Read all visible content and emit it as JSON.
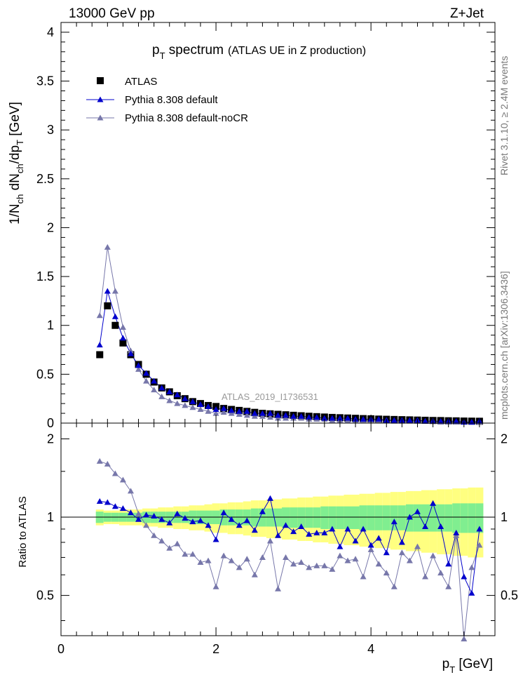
{
  "header": {
    "left": "13000 GeV pp",
    "right": "Z+Jet"
  },
  "side": {
    "rivet": "Rivet 3.1.10, ≥ 2.4M events",
    "mcplots": "mcplots.cern.ch [arXiv:1306.3436]"
  },
  "chart_data": [
    {
      "type": "scatter",
      "title_main": "p",
      "title_sub": "T",
      "title_rest": " spectrum",
      "title_note": "(ATLAS UE in Z production)",
      "ylabel": "1/N_ch dN_ch/dp_T [GeV]",
      "ylabel_parts": {
        "a": "1/N",
        "b": "ch",
        "c": " dN",
        "d": "ch",
        "e": "/dp",
        "f": "T",
        "g": " [GeV]"
      },
      "watermark": "ATLAS_2019_I1736531",
      "ylim": [
        0,
        4.1
      ],
      "xlim": [
        0,
        5.6
      ],
      "yticks": [
        "0",
        "0.5",
        "1",
        "1.5",
        "2",
        "2.5",
        "3",
        "3.5",
        "4"
      ],
      "legend_position": "top-left",
      "x": [
        0.5,
        0.6,
        0.7,
        0.8,
        0.9,
        1.0,
        1.1,
        1.2,
        1.3,
        1.4,
        1.5,
        1.6,
        1.7,
        1.8,
        1.9,
        2.0,
        2.1,
        2.2,
        2.3,
        2.4,
        2.5,
        2.6,
        2.7,
        2.8,
        2.9,
        3.0,
        3.1,
        3.2,
        3.3,
        3.4,
        3.5,
        3.6,
        3.7,
        3.8,
        3.9,
        4.0,
        4.1,
        4.2,
        4.3,
        4.4,
        4.5,
        4.6,
        4.7,
        4.8,
        4.9,
        5.0,
        5.1,
        5.2,
        5.3,
        5.4
      ],
      "series": [
        {
          "name": "ATLAS",
          "color": "#000000",
          "marker": "square",
          "values": [
            0.7,
            1.2,
            1.0,
            0.82,
            0.7,
            0.6,
            0.5,
            0.42,
            0.36,
            0.32,
            0.28,
            0.25,
            0.22,
            0.2,
            0.18,
            0.17,
            0.15,
            0.14,
            0.13,
            0.12,
            0.11,
            0.1,
            0.095,
            0.09,
            0.085,
            0.08,
            0.075,
            0.07,
            0.066,
            0.062,
            0.058,
            0.055,
            0.052,
            0.049,
            0.046,
            0.044,
            0.041,
            0.039,
            0.037,
            0.035,
            0.033,
            0.031,
            0.029,
            0.027,
            0.026,
            0.024,
            0.023,
            0.021,
            0.02,
            0.019
          ]
        },
        {
          "name": "Pythia 8.308 default",
          "color": "#0000cc",
          "marker": "triangle",
          "values": [
            0.8,
            1.35,
            1.09,
            0.87,
            0.71,
            0.59,
            0.51,
            0.43,
            0.36,
            0.32,
            0.29,
            0.25,
            0.22,
            0.19,
            0.17,
            0.14,
            0.15,
            0.13,
            0.12,
            0.12,
            0.1,
            0.1,
            0.1,
            0.08,
            0.08,
            0.07,
            0.07,
            0.06,
            0.06,
            0.05,
            0.05,
            0.05,
            0.05,
            0.04,
            0.04,
            0.04,
            0.04,
            0.03,
            0.03,
            0.03,
            0.03,
            0.03,
            0.02,
            0.02,
            0.02,
            0.02,
            0.02,
            0.01,
            0.01,
            0.02
          ]
        },
        {
          "name": "Pythia 8.308 default-noCR",
          "color": "#7777aa",
          "marker": "triangle",
          "values": [
            1.1,
            1.8,
            1.35,
            0.98,
            0.74,
            0.55,
            0.43,
            0.34,
            0.27,
            0.23,
            0.2,
            0.18,
            0.16,
            0.14,
            0.12,
            0.1,
            0.11,
            0.1,
            0.09,
            0.08,
            0.07,
            0.07,
            0.06,
            0.05,
            0.05,
            0.05,
            0.05,
            0.04,
            0.04,
            0.04,
            0.03,
            0.03,
            0.03,
            0.03,
            0.03,
            0.03,
            0.03,
            0.03,
            0.02,
            0.02,
            0.02,
            0.02,
            0.02,
            0.02,
            0.01,
            0.01,
            0.01,
            0.01,
            0.01,
            0.01
          ]
        }
      ]
    },
    {
      "type": "scatter",
      "ylabel": "Ratio to ATLAS",
      "xlabel_main": "p",
      "xlabel_sub": "T",
      "xlabel_rest": " [GeV]",
      "ylim": [
        0.35,
        2.3
      ],
      "xlim": [
        0,
        5.6
      ],
      "yticks": [
        "0.5",
        "1",
        "2"
      ],
      "xticks": [
        "0",
        "2",
        "4"
      ],
      "x": [
        0.5,
        0.6,
        0.7,
        0.8,
        0.9,
        1.0,
        1.1,
        1.2,
        1.3,
        1.4,
        1.5,
        1.6,
        1.7,
        1.8,
        1.9,
        2.0,
        2.1,
        2.2,
        2.3,
        2.4,
        2.5,
        2.6,
        2.7,
        2.8,
        2.9,
        3.0,
        3.1,
        3.2,
        3.3,
        3.4,
        3.5,
        3.6,
        3.7,
        3.8,
        3.9,
        4.0,
        4.1,
        4.2,
        4.3,
        4.4,
        4.5,
        4.6,
        4.7,
        4.8,
        4.9,
        5.0,
        5.1,
        5.2,
        5.3,
        5.4
      ],
      "band_stat": [
        0.05,
        0.04,
        0.04,
        0.04,
        0.04,
        0.04,
        0.05,
        0.05,
        0.05,
        0.05,
        0.05,
        0.05,
        0.06,
        0.06,
        0.06,
        0.06,
        0.07,
        0.07,
        0.07,
        0.07,
        0.08,
        0.08,
        0.08,
        0.08,
        0.09,
        0.09,
        0.09,
        0.09,
        0.09,
        0.1,
        0.1,
        0.1,
        0.1,
        0.1,
        0.11,
        0.11,
        0.11,
        0.11,
        0.11,
        0.11,
        0.12,
        0.12,
        0.12,
        0.12,
        0.12,
        0.12,
        0.13,
        0.13,
        0.13,
        0.13
      ],
      "band_total": [
        0.07,
        0.06,
        0.06,
        0.07,
        0.07,
        0.07,
        0.08,
        0.08,
        0.09,
        0.09,
        0.1,
        0.1,
        0.11,
        0.11,
        0.12,
        0.13,
        0.13,
        0.14,
        0.14,
        0.15,
        0.16,
        0.16,
        0.17,
        0.17,
        0.18,
        0.18,
        0.19,
        0.19,
        0.2,
        0.2,
        0.21,
        0.21,
        0.22,
        0.22,
        0.23,
        0.23,
        0.24,
        0.24,
        0.25,
        0.25,
        0.26,
        0.26,
        0.27,
        0.27,
        0.28,
        0.28,
        0.29,
        0.29,
        0.3,
        0.3
      ],
      "series": [
        {
          "name": "Pythia 8.308 default",
          "color": "#0000cc",
          "values": [
            1.15,
            1.14,
            1.1,
            1.08,
            1.04,
            0.98,
            1.02,
            1.01,
            0.98,
            0.95,
            1.03,
            0.99,
            0.96,
            0.97,
            0.93,
            0.82,
            1.04,
            0.98,
            0.93,
            0.97,
            0.89,
            1.05,
            1.18,
            0.85,
            0.93,
            0.88,
            0.92,
            0.86,
            0.87,
            0.87,
            0.9,
            0.77,
            0.9,
            0.81,
            0.9,
            0.78,
            0.83,
            0.73,
            0.96,
            0.8,
            1.0,
            1.05,
            0.92,
            1.13,
            0.92,
            0.66,
            0.87,
            0.59,
            0.51,
            0.9
          ]
        },
        {
          "name": "Pythia 8.308 default-noCR",
          "color": "#7777aa",
          "values": [
            1.64,
            1.6,
            1.47,
            1.39,
            1.26,
            1.03,
            0.93,
            0.85,
            0.81,
            0.76,
            0.79,
            0.72,
            0.72,
            0.67,
            0.68,
            0.54,
            0.71,
            0.68,
            0.64,
            0.69,
            0.6,
            0.7,
            0.81,
            0.53,
            0.7,
            0.66,
            0.67,
            0.64,
            0.65,
            0.65,
            0.63,
            0.71,
            0.68,
            0.69,
            0.59,
            0.75,
            0.66,
            0.61,
            0.54,
            0.73,
            0.68,
            0.77,
            0.59,
            0.71,
            0.61,
            0.54,
            0.85,
            0.34,
            0.64,
            0.78
          ]
        }
      ]
    }
  ]
}
